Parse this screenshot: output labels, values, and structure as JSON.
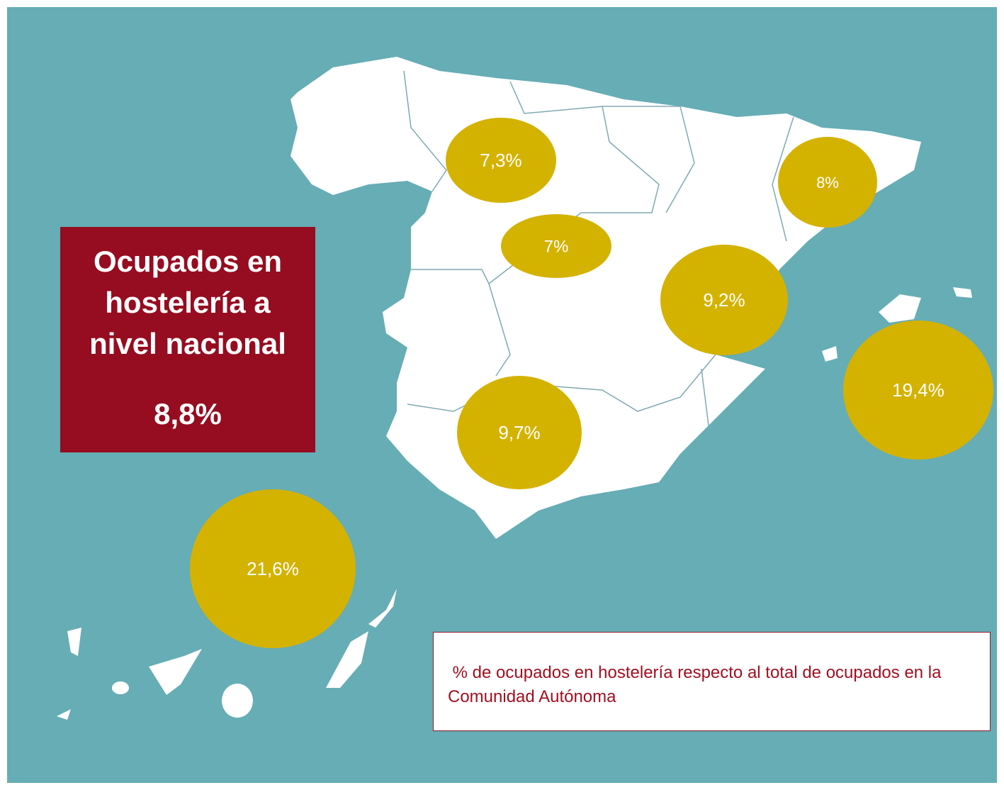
{
  "title": "Ocupados en hostelería a nivel nacional",
  "national_value": "8,8%",
  "bubbles": [
    {
      "label": "7,3%"
    },
    {
      "label": "7%"
    },
    {
      "label": "8%"
    },
    {
      "label": "9,2%"
    },
    {
      "label": "9,7%"
    },
    {
      "label": "19,4%"
    },
    {
      "label": "21,6%"
    }
  ],
  "note": " % de ocupados en hostelería respecto al total de ocupados en la Comunidad Autónoma"
}
